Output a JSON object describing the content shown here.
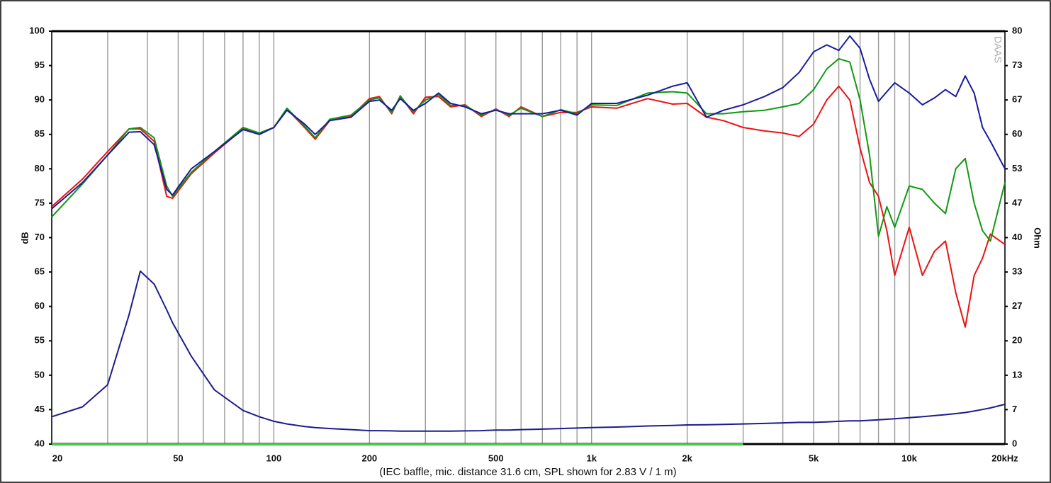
{
  "chart_data": {
    "type": "line",
    "xscale": "log",
    "grid": "x",
    "ylabel": "dB",
    "y2label": "Ohm",
    "caption": "(IEC baffle, mic. distance 31.6 cm, SPL shown for 2.83 V / 1 m)",
    "watermark": "DAAS",
    "xlim": [
      20,
      20000
    ],
    "xticks": [
      20,
      50,
      100,
      200,
      500,
      {
        "value": 1000,
        "label": "1k"
      },
      {
        "value": 2000,
        "label": "2k"
      },
      {
        "value": 5000,
        "label": "5k"
      },
      {
        "value": 10000,
        "label": "10k"
      },
      {
        "value": 20000,
        "label": "20kHz"
      }
    ],
    "x_minor_ticks": [
      30,
      40,
      60,
      70,
      80,
      90,
      300,
      400,
      600,
      700,
      800,
      900,
      3000,
      4000,
      6000,
      7000,
      8000,
      9000
    ],
    "ylim": [
      40,
      100
    ],
    "yticks": [
      40,
      45,
      50,
      55,
      60,
      65,
      70,
      75,
      80,
      85,
      90,
      95,
      100
    ],
    "y2lim": [
      0,
      80
    ],
    "y2ticks": [
      0,
      {
        "value": 6.67,
        "label": "7"
      },
      {
        "value": 13.33,
        "label": "13"
      },
      20,
      {
        "value": 26.67,
        "label": "27"
      },
      {
        "value": 33.33,
        "label": "33"
      },
      40,
      {
        "value": 46.67,
        "label": "47"
      },
      {
        "value": 53.33,
        "label": "53"
      },
      60,
      {
        "value": 66.67,
        "label": "67"
      },
      {
        "value": 73.33,
        "label": "73"
      },
      80
    ],
    "x": [
      20,
      25,
      30,
      35,
      38,
      42,
      46,
      48,
      55,
      65,
      80,
      90,
      100,
      110,
      125,
      135,
      150,
      175,
      200,
      215,
      235,
      250,
      275,
      300,
      330,
      360,
      400,
      450,
      500,
      550,
      600,
      700,
      800,
      900,
      1000,
      1200,
      1500,
      1800,
      2000,
      2300,
      2600,
      3000,
      3500,
      4000,
      4500,
      5000,
      5500,
      6000,
      6500,
      7000,
      7500,
      8000,
      8500,
      9000,
      10000,
      11000,
      12000,
      13000,
      14000,
      15000,
      16000,
      17000,
      18000,
      20000
    ],
    "series": [
      {
        "color": "#ee1111",
        "values": [
          74.5,
          78.5,
          82.5,
          85.8,
          85.8,
          84,
          76,
          75.7,
          79.3,
          82.3,
          85.8,
          85.2,
          86,
          88.7,
          86,
          84.3,
          87,
          87.6,
          90.2,
          90.5,
          88,
          90.6,
          88,
          90.4,
          90.5,
          89,
          89.3,
          87.6,
          88.7,
          87.6,
          89,
          87.6,
          88.2,
          88.2,
          89,
          88.8,
          90.2,
          89.4,
          89.5,
          87.5,
          87,
          86,
          85.5,
          85.2,
          84.7,
          86.5,
          90,
          92,
          90,
          83,
          78,
          76,
          71,
          64.5,
          71.5,
          64.5,
          68,
          69.5,
          62,
          57,
          64.5,
          67,
          70.5,
          69
        ]
      },
      {
        "color": "#119911",
        "values": [
          73,
          77.8,
          82,
          85.8,
          86,
          84.5,
          77.5,
          76,
          79.5,
          82.5,
          86,
          85.2,
          86,
          88.8,
          86.2,
          84.5,
          87.2,
          87.8,
          90,
          90.3,
          88.2,
          90.5,
          88.3,
          90,
          90.8,
          89.2,
          89.2,
          87.8,
          88.6,
          87.8,
          88.8,
          87.6,
          88.6,
          88,
          89.3,
          89.2,
          91,
          91.2,
          91,
          88,
          88,
          88.3,
          88.5,
          89,
          89.5,
          91.5,
          94.5,
          96,
          95.5,
          90,
          82,
          70.2,
          74.5,
          71.5,
          77.5,
          77,
          75,
          73.5,
          80,
          81.5,
          75,
          71,
          69.5,
          78
        ]
      },
      {
        "color": "#1a1a9e",
        "values": [
          74.2,
          78,
          82,
          85.3,
          85.4,
          83.5,
          77,
          76.2,
          80,
          82.5,
          85.7,
          85,
          86,
          88.5,
          86.5,
          85,
          87,
          87.5,
          89.8,
          90,
          88.5,
          90.2,
          88.5,
          89.5,
          91,
          89.5,
          89,
          88,
          88.5,
          88,
          88,
          88,
          88.5,
          87.8,
          89.5,
          89.5,
          90.7,
          92,
          92.5,
          87.5,
          88.5,
          89.3,
          90.5,
          91.8,
          94,
          97,
          98,
          97.2,
          99.3,
          97.5,
          93,
          89.8,
          91.2,
          92.5,
          91,
          89.3,
          90.3,
          91.5,
          90.5,
          93.5,
          91,
          86,
          84,
          80
        ]
      },
      {
        "color": "#1c1c8c",
        "axis": "y2",
        "values": [
          5.3,
          7.2,
          11.5,
          25,
          33.5,
          31,
          26,
          23.5,
          17,
          10.5,
          6.5,
          5.3,
          4.4,
          3.9,
          3.4,
          3.2,
          3.0,
          2.8,
          2.6,
          2.6,
          2.55,
          2.5,
          2.5,
          2.5,
          2.5,
          2.5,
          2.55,
          2.6,
          2.7,
          2.7,
          2.8,
          2.9,
          3.0,
          3.1,
          3.2,
          3.3,
          3.5,
          3.6,
          3.7,
          3.75,
          3.8,
          3.9,
          4.0,
          4.1,
          4.2,
          4.2,
          4.3,
          4.4,
          4.5,
          4.5,
          4.6,
          4.7,
          4.8,
          4.9,
          5.1,
          5.3,
          5.5,
          5.7,
          5.9,
          6.1,
          6.4,
          6.7,
          7.0,
          7.7
        ]
      },
      {
        "color": "#33dd33",
        "values": [
          40,
          40,
          40,
          40,
          40,
          40,
          40,
          40,
          40,
          40,
          40,
          40,
          40,
          40,
          40,
          40,
          40,
          40,
          40,
          40,
          40,
          40,
          40,
          40,
          40,
          40,
          40,
          40,
          40,
          40,
          40,
          40,
          40,
          40,
          40,
          40,
          40,
          40,
          40,
          40,
          40,
          40,
          null,
          null,
          null,
          null,
          null,
          null,
          null,
          null,
          null,
          null,
          null,
          null,
          null,
          null,
          null,
          null,
          null,
          null,
          null,
          null,
          null,
          null
        ]
      }
    ]
  }
}
